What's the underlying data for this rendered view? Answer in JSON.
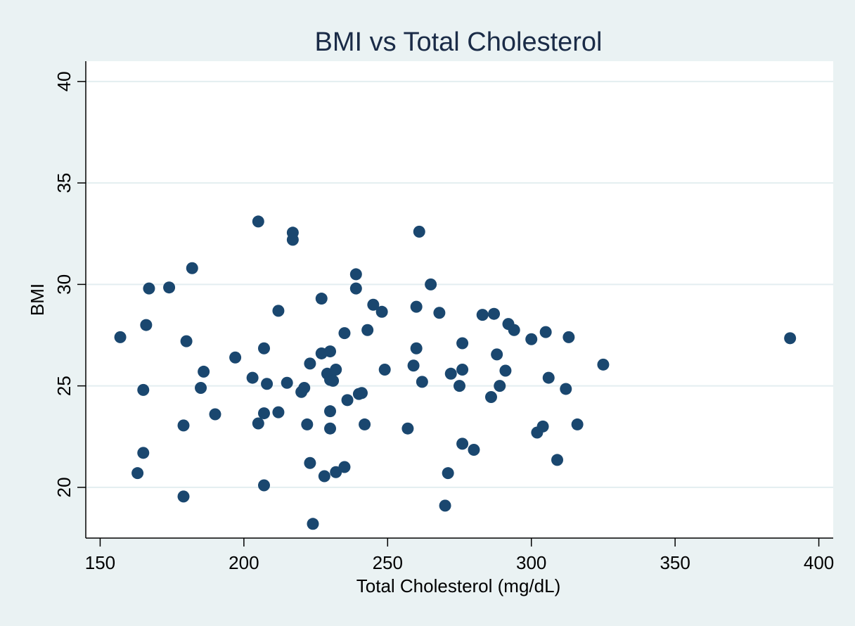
{
  "chart_data": {
    "type": "scatter",
    "title": "BMI vs Total Cholesterol",
    "xlabel": "Total Cholesterol (mg/dL)",
    "ylabel": "BMI",
    "xlim": [
      145,
      405
    ],
    "ylim": [
      17.5,
      41
    ],
    "xticks": [
      150,
      200,
      250,
      300,
      350,
      400
    ],
    "yticks": [
      20,
      25,
      30,
      35,
      40
    ],
    "grid": "horizontal",
    "legend": "none",
    "colors": {
      "background": "#eaf2f3",
      "plot_area": "#ffffff",
      "gridline": "#e3eef0",
      "marker": "#1a476f",
      "title": "#1a2b47"
    },
    "series": [
      {
        "points": [
          [
            157,
            27.4
          ],
          [
            163,
            20.7
          ],
          [
            165,
            24.8
          ],
          [
            165,
            21.7
          ],
          [
            166,
            28.0
          ],
          [
            167,
            29.8
          ],
          [
            174,
            29.85
          ],
          [
            179,
            23.05
          ],
          [
            179,
            19.55
          ],
          [
            180,
            27.2
          ],
          [
            182,
            30.8
          ],
          [
            185,
            24.9
          ],
          [
            186,
            25.7
          ],
          [
            190,
            23.6
          ],
          [
            197,
            26.4
          ],
          [
            203,
            25.4
          ],
          [
            205,
            33.1
          ],
          [
            205,
            23.15
          ],
          [
            207,
            26.85
          ],
          [
            207,
            23.65
          ],
          [
            207,
            20.1
          ],
          [
            208,
            25.1
          ],
          [
            212,
            28.7
          ],
          [
            212,
            23.7
          ],
          [
            215,
            25.15
          ],
          [
            217,
            32.55
          ],
          [
            217,
            32.2
          ],
          [
            220,
            24.7
          ],
          [
            221,
            24.9
          ],
          [
            222,
            23.1
          ],
          [
            223,
            26.1
          ],
          [
            223,
            21.2
          ],
          [
            224,
            18.2
          ],
          [
            227,
            29.3
          ],
          [
            227,
            26.6
          ],
          [
            228,
            20.55
          ],
          [
            229,
            25.6
          ],
          [
            230,
            26.7
          ],
          [
            230,
            25.3
          ],
          [
            230,
            23.75
          ],
          [
            230,
            22.9
          ],
          [
            231,
            25.25
          ],
          [
            232,
            25.8
          ],
          [
            232,
            20.75
          ],
          [
            235,
            27.6
          ],
          [
            235,
            21.0
          ],
          [
            236,
            24.3
          ],
          [
            239,
            30.5
          ],
          [
            239,
            29.8
          ],
          [
            240,
            24.6
          ],
          [
            241,
            24.65
          ],
          [
            242,
            23.1
          ],
          [
            243,
            27.75
          ],
          [
            245,
            29.0
          ],
          [
            248,
            28.65
          ],
          [
            249,
            25.8
          ],
          [
            257,
            22.9
          ],
          [
            259,
            26.0
          ],
          [
            260,
            28.9
          ],
          [
            260,
            26.85
          ],
          [
            261,
            32.6
          ],
          [
            262,
            25.2
          ],
          [
            265,
            30.0
          ],
          [
            268,
            28.6
          ],
          [
            270,
            19.1
          ],
          [
            271,
            20.7
          ],
          [
            272,
            25.6
          ],
          [
            275,
            25.0
          ],
          [
            276,
            27.1
          ],
          [
            276,
            25.8
          ],
          [
            276,
            22.15
          ],
          [
            280,
            21.85
          ],
          [
            283,
            28.5
          ],
          [
            286,
            24.45
          ],
          [
            287,
            28.55
          ],
          [
            288,
            26.55
          ],
          [
            289,
            25.0
          ],
          [
            291,
            25.75
          ],
          [
            292,
            28.05
          ],
          [
            294,
            27.75
          ],
          [
            300,
            27.3
          ],
          [
            302,
            22.7
          ],
          [
            304,
            23.0
          ],
          [
            305,
            27.65
          ],
          [
            306,
            25.4
          ],
          [
            309,
            21.35
          ],
          [
            312,
            24.85
          ],
          [
            313,
            27.4
          ],
          [
            316,
            23.1
          ],
          [
            325,
            26.05
          ],
          [
            390,
            27.35
          ]
        ]
      }
    ]
  }
}
